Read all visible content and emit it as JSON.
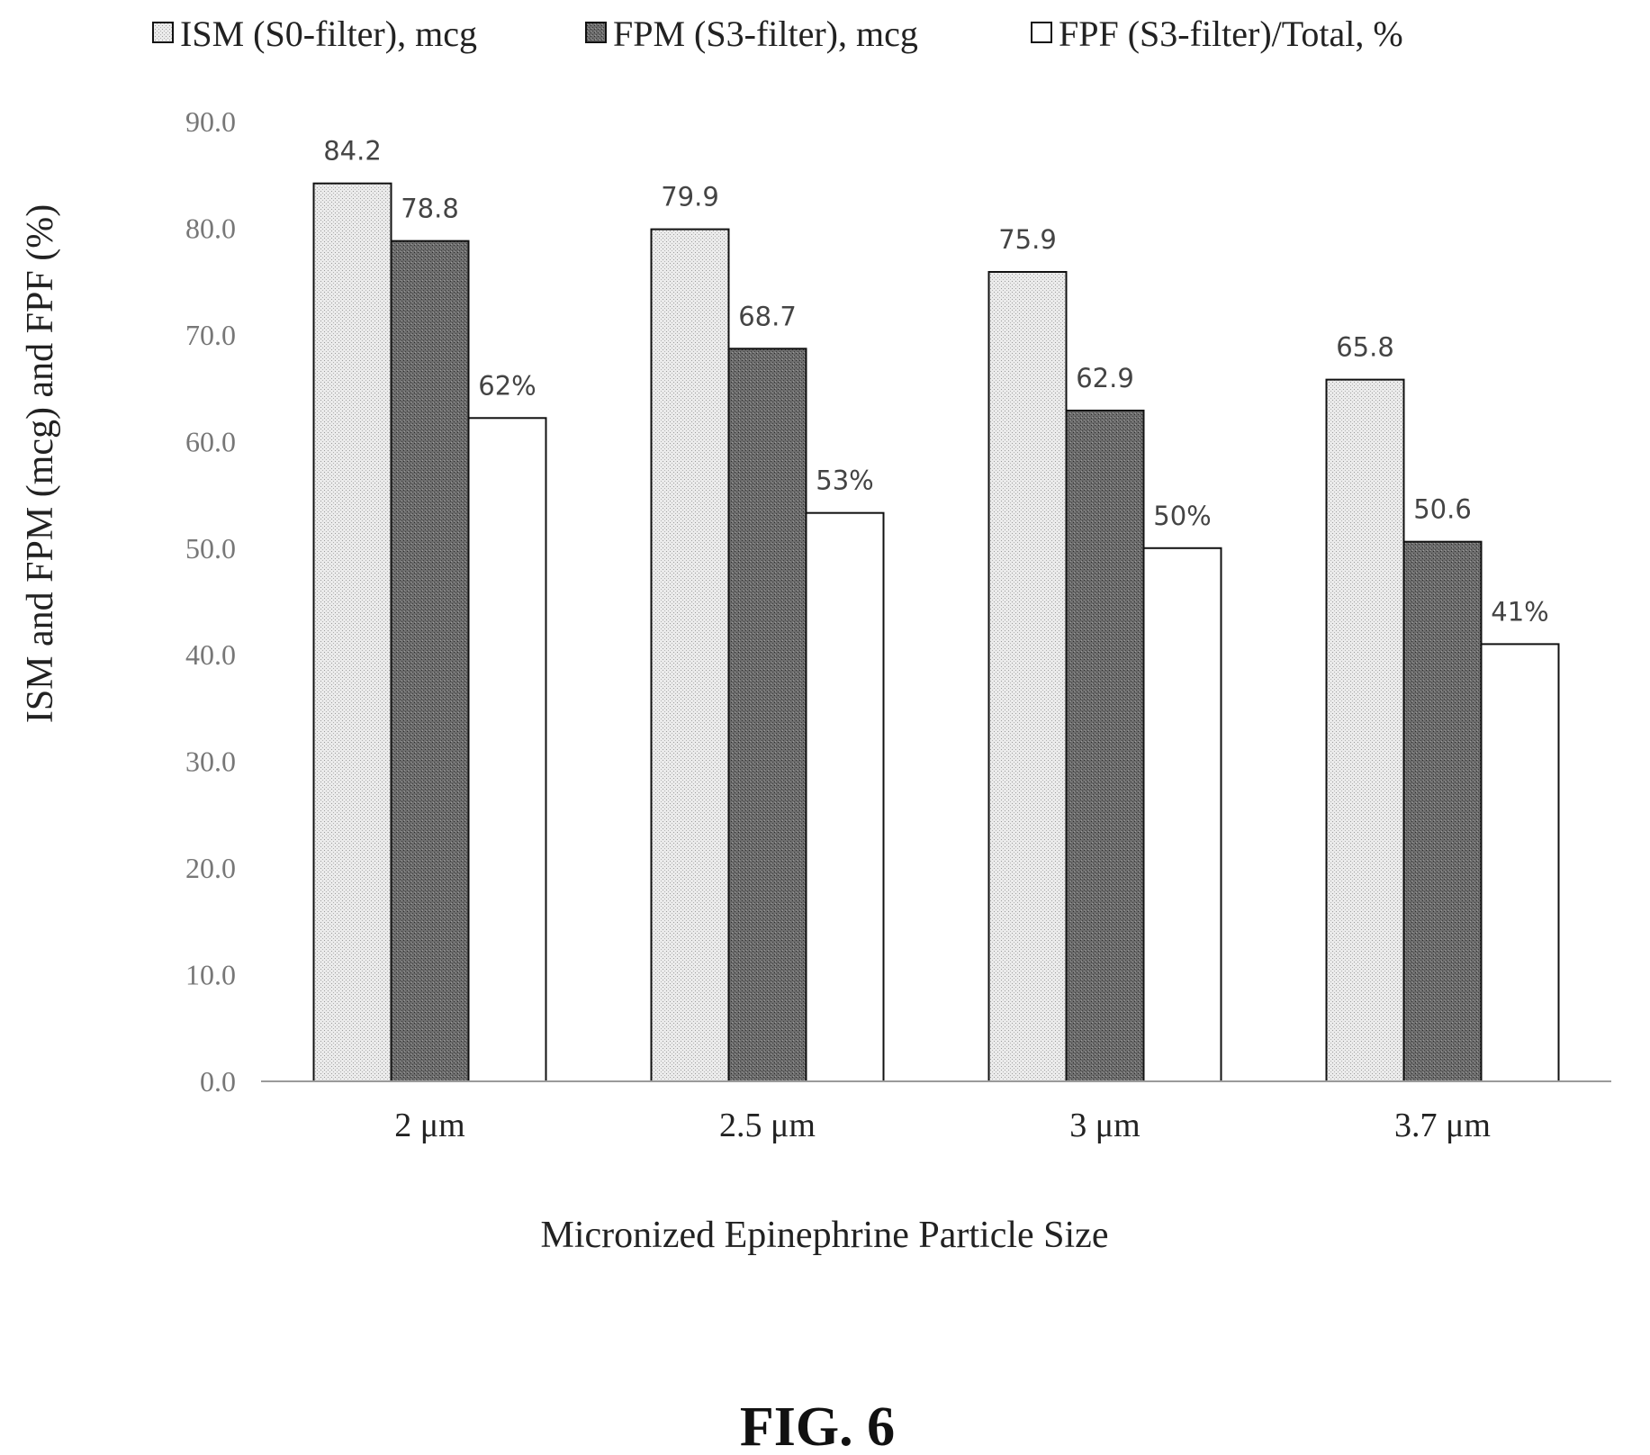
{
  "chart_data": {
    "type": "bar",
    "categories": [
      "2 μm",
      "2.5 μm",
      "3 μm",
      "3.7 μm"
    ],
    "series": [
      {
        "name": "ISM (S0-filter), mcg",
        "values": [
          84.2,
          79.9,
          75.9,
          65.8
        ],
        "labels": [
          "84.2",
          "79.9",
          "75.9",
          "65.8"
        ],
        "fill": "light-stipple"
      },
      {
        "name": "FPM (S3-filter), mcg",
        "values": [
          78.8,
          68.7,
          62.9,
          50.6
        ],
        "labels": [
          "78.8",
          "68.7",
          "62.9",
          "50.6"
        ],
        "fill": "dark-stipple"
      },
      {
        "name": "FPF (S3-filter)/Total, %",
        "values": [
          62.2,
          53.3,
          50.0,
          41.0
        ],
        "labels": [
          "62%",
          "53%",
          "50%",
          "41%"
        ],
        "fill": "white"
      }
    ],
    "xlabel": "Micronized Epinephrine Particle Size",
    "ylabel": "ISM and FPM (mcg) and FPF (%)",
    "ylim": [
      0,
      90
    ],
    "yticks": [
      "0.0",
      "10.0",
      "20.0",
      "30.0",
      "40.0",
      "50.0",
      "60.0",
      "70.0",
      "80.0",
      "90.0"
    ],
    "legend_position": "top",
    "grid": false
  },
  "caption": "FIG. 6",
  "colors": {
    "light_fill": "#e6e6e6",
    "dark_fill": "#6b6b6b",
    "white_fill": "#ffffff",
    "bar_stroke": "#111111",
    "axis": "#9a9a9a"
  }
}
